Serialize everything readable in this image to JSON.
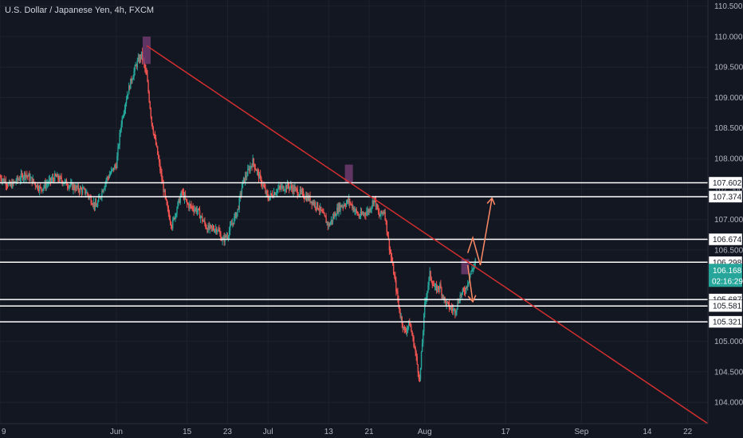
{
  "header": {
    "title": "U.S. Dollar / Japanese Yen, 4h, FXCM"
  },
  "colors": {
    "background": "#131722",
    "grid": "#1e222d",
    "axis_text": "#b2b5be",
    "bull": "#26a69a",
    "bear": "#ef5350",
    "trendline": "#d32f2f",
    "level_line": "#ffffff",
    "highlight": "#7b3f7a",
    "arrow": "#ff8a65",
    "price_badge": "#26a69a"
  },
  "chart_data": {
    "type": "candlestick",
    "symbol": "U.S. Dollar / Japanese Yen",
    "interval": "4h",
    "source": "FXCM",
    "ylim": [
      103.65,
      110.6
    ],
    "y_ticks": [
      "110.500",
      "110.000",
      "109.500",
      "109.000",
      "108.500",
      "108.000",
      "107.500",
      "107.000",
      "106.500",
      "105.000",
      "104.500",
      "104.000"
    ],
    "x_ticks": [
      {
        "label": "9",
        "day": -22
      },
      {
        "label": "Jun",
        "day": 1
      },
      {
        "label": "15",
        "day": 15
      },
      {
        "label": "23",
        "day": 23
      },
      {
        "label": "Jul",
        "day": 31
      },
      {
        "label": "13",
        "day": 43
      },
      {
        "label": "21",
        "day": 51
      },
      {
        "label": "Aug",
        "day": 62
      },
      {
        "label": "17",
        "day": 78
      },
      {
        "label": "Sep",
        "day": 93
      },
      {
        "label": "14",
        "day": 106
      },
      {
        "label": "22",
        "day": 114
      }
    ],
    "xlim_days": [
      -22,
      118
    ],
    "price_path": [
      [
        -22,
        107.7
      ],
      [
        -20,
        107.55
      ],
      [
        -17,
        107.75
      ],
      [
        -14,
        107.5
      ],
      [
        -11,
        107.7
      ],
      [
        -8,
        107.55
      ],
      [
        -5,
        107.45
      ],
      [
        -3,
        107.2
      ],
      [
        -1,
        107.65
      ],
      [
        1,
        107.9
      ],
      [
        2,
        108.6
      ],
      [
        3,
        109.0
      ],
      [
        4,
        109.3
      ],
      [
        5,
        109.55
      ],
      [
        6,
        109.7
      ],
      [
        7,
        109.35
      ],
      [
        8,
        108.6
      ],
      [
        9,
        108.15
      ],
      [
        10,
        107.65
      ],
      [
        11,
        107.2
      ],
      [
        12,
        106.9
      ],
      [
        13,
        107.2
      ],
      [
        14,
        107.45
      ],
      [
        15,
        107.25
      ],
      [
        17,
        107.15
      ],
      [
        19,
        106.85
      ],
      [
        21,
        106.85
      ],
      [
        22,
        106.65
      ],
      [
        23,
        106.75
      ],
      [
        24,
        106.95
      ],
      [
        25,
        107.15
      ],
      [
        26,
        107.6
      ],
      [
        28,
        107.95
      ],
      [
        30,
        107.55
      ],
      [
        31,
        107.35
      ],
      [
        33,
        107.5
      ],
      [
        35,
        107.55
      ],
      [
        37,
        107.45
      ],
      [
        39,
        107.35
      ],
      [
        41,
        107.2
      ],
      [
        43,
        106.9
      ],
      [
        45,
        107.2
      ],
      [
        47,
        107.3
      ],
      [
        49,
        107.05
      ],
      [
        51,
        107.15
      ],
      [
        52,
        107.35
      ],
      [
        53,
        107.05
      ],
      [
        54,
        107.15
      ],
      [
        55,
        106.55
      ],
      [
        56,
        106.05
      ],
      [
        57,
        105.5
      ],
      [
        58,
        105.15
      ],
      [
        59,
        105.3
      ],
      [
        60,
        104.9
      ],
      [
        61,
        104.35
      ],
      [
        62,
        105.6
      ],
      [
        63,
        106.1
      ],
      [
        64,
        105.85
      ],
      [
        65,
        105.9
      ],
      [
        66,
        105.65
      ],
      [
        67,
        105.55
      ],
      [
        68,
        105.5
      ],
      [
        69,
        105.75
      ],
      [
        70,
        105.85
      ],
      [
        71,
        106.1
      ],
      [
        72,
        106.3
      ]
    ],
    "trendline": {
      "from": {
        "day": 7,
        "price": 109.85
      },
      "to": {
        "day": 118,
        "price": 103.65
      }
    },
    "levels": [
      {
        "label": "107.602",
        "price": 107.602
      },
      {
        "label": "107.374",
        "price": 107.374
      },
      {
        "label": "106.674",
        "price": 106.674
      },
      {
        "label": "106.298",
        "price": 106.298
      },
      {
        "label": "105.687",
        "price": 105.687
      },
      {
        "label": "105.581",
        "price": 105.581
      },
      {
        "label": "105.321",
        "price": 105.321
      }
    ],
    "current_price": {
      "label": "106.168",
      "price": 106.168
    },
    "countdown": "02:16:29",
    "highlights": [
      {
        "day": 7,
        "low": 109.55,
        "high": 110.0
      },
      {
        "day": 47,
        "low": 107.6,
        "high": 107.9
      },
      {
        "day": 70,
        "low": 106.1,
        "high": 106.35
      }
    ],
    "projection_arrows": [
      {
        "points": [
          [
            70.5,
            106.45
          ],
          [
            71.5,
            106.7
          ],
          [
            73.0,
            106.25
          ],
          [
            75.3,
            107.35
          ]
        ]
      },
      {
        "points": [
          [
            70.5,
            106.25
          ],
          [
            71.5,
            105.65
          ]
        ]
      }
    ]
  }
}
